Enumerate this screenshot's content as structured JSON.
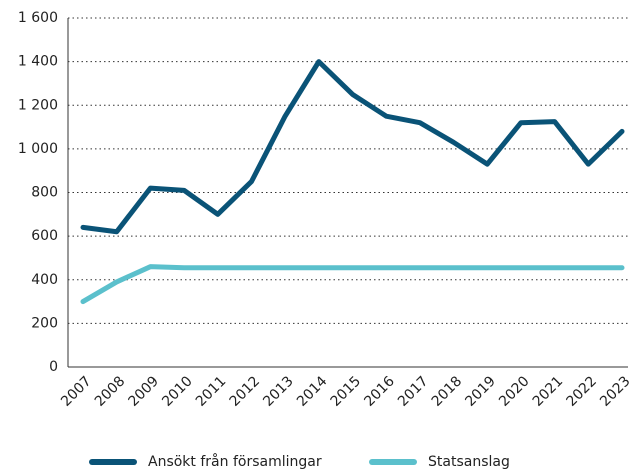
{
  "chart_data": {
    "type": "line",
    "categories": [
      "2007",
      "2008",
      "2009",
      "2010",
      "2011",
      "2012",
      "2013",
      "2014",
      "2015",
      "2016",
      "2017",
      "2018",
      "2019",
      "2020",
      "2021",
      "2022",
      "2023"
    ],
    "series": [
      {
        "name": "Ansökt från församlingar",
        "color": "#0a5377",
        "values": [
          640,
          620,
          820,
          810,
          700,
          850,
          1150,
          1400,
          1250,
          1150,
          1120,
          1030,
          930,
          1120,
          1125,
          930,
          1080
        ]
      },
      {
        "name": "Statsanslag",
        "color": "#5bc0cc",
        "values": [
          300,
          390,
          460,
          455,
          455,
          455,
          455,
          455,
          455,
          455,
          455,
          455,
          455,
          455,
          455,
          455,
          455
        ]
      }
    ],
    "ylim": [
      0,
      1600
    ],
    "yticks": [
      0,
      200,
      400,
      600,
      800,
      {
        "value": 1000,
        "label": "1 000"
      },
      {
        "value": 1200,
        "label": "1 200"
      },
      {
        "value": 1400,
        "label": "1 400"
      },
      {
        "value": 1600,
        "label": "1 600"
      }
    ],
    "grid": true,
    "legend": "bottom"
  }
}
